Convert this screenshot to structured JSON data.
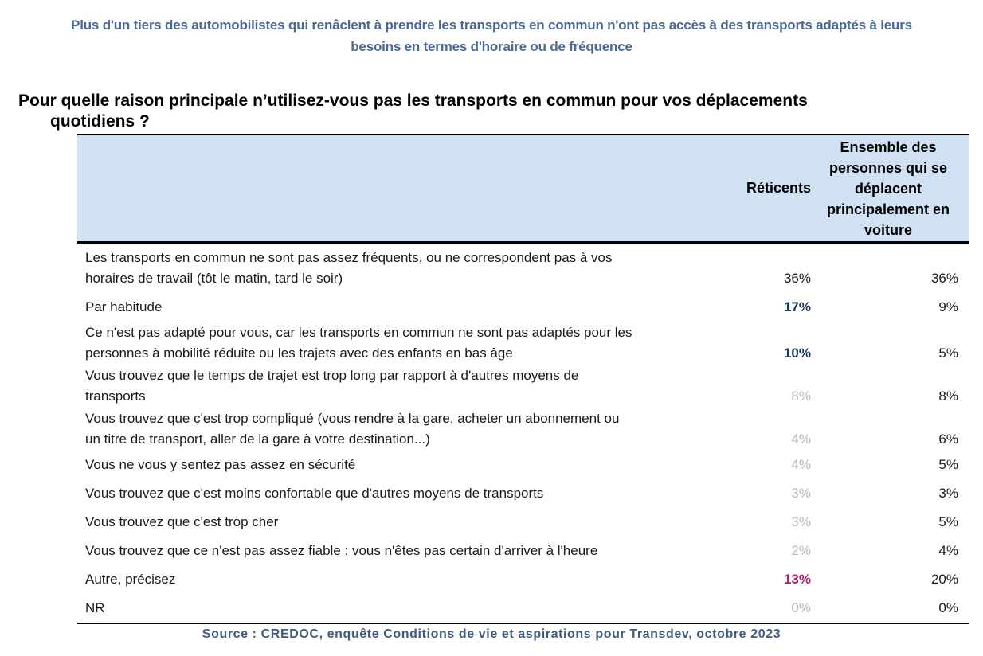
{
  "title": {
    "line1": "Plus d'un tiers des automobilistes qui renâclent à prendre les transports en commun n'ont pas accès à des transports adaptés à leurs",
    "line2": "besoins en termes d'horaire ou de fréquence"
  },
  "question": {
    "line1": "Pour quelle raison principale n’utilisez-vous pas les transports en commun pour vos déplacements",
    "line2": "quotidiens ?"
  },
  "table": {
    "header": {
      "col_label": "",
      "col_reticents": "Réticents",
      "col_ensemble": "Ensemble des personnes qui se déplacent principalement en voiture"
    },
    "rows": [
      {
        "label_lines": [
          "Les transports en commun ne sont pas assez fréquents, ou ne correspondent pas à vos",
          "horaires de travail (tôt le matin, tard le soir)"
        ],
        "reticents": "36%",
        "reticents_color": "black",
        "reticents_bold": false,
        "ensemble": "36%",
        "tight": false
      },
      {
        "label_lines": [
          "Par habitude"
        ],
        "reticents": "17%",
        "reticents_color": "navy",
        "reticents_bold": true,
        "ensemble": "9%",
        "tight": false
      },
      {
        "label_lines": [
          "Ce n'est pas adapté pour vous, car les transports en commun ne sont pas adaptés pour les",
          "personnes à mobilité réduite ou les trajets avec des enfants en bas âge"
        ],
        "reticents": "10%",
        "reticents_color": "navy",
        "reticents_bold": true,
        "ensemble": "5%",
        "tight": true
      },
      {
        "label_lines": [
          "Vous trouvez que le temps de trajet est trop long par rapport à d'autres moyens de",
          "transports"
        ],
        "reticents": "8%",
        "reticents_color": "gray",
        "reticents_bold": false,
        "ensemble": "8%",
        "tight": true
      },
      {
        "label_lines": [
          "Vous trouvez que c'est trop compliqué (vous rendre à la gare, acheter un abonnement ou",
          "un titre de transport, aller de la gare à votre destination...)"
        ],
        "reticents": "4%",
        "reticents_color": "gray",
        "reticents_bold": false,
        "ensemble": "6%",
        "tight": true
      },
      {
        "label_lines": [
          "Vous ne vous y sentez pas assez en sécurité"
        ],
        "reticents": "4%",
        "reticents_color": "gray",
        "reticents_bold": false,
        "ensemble": "5%",
        "tight": false
      },
      {
        "label_lines": [
          "Vous trouvez que c'est moins confortable que d'autres moyens de transports"
        ],
        "reticents": "3%",
        "reticents_color": "gray",
        "reticents_bold": false,
        "ensemble": "3%",
        "tight": false
      },
      {
        "label_lines": [
          "Vous trouvez que c'est trop cher"
        ],
        "reticents": "3%",
        "reticents_color": "gray",
        "reticents_bold": false,
        "ensemble": "5%",
        "tight": false
      },
      {
        "label_lines": [
          "Vous trouvez que ce n'est pas assez fiable : vous n'êtes pas certain d'arriver à l'heure"
        ],
        "reticents": "2%",
        "reticents_color": "gray",
        "reticents_bold": false,
        "ensemble": "4%",
        "tight": false
      },
      {
        "label_lines": [
          "Autre, précisez"
        ],
        "reticents": "13%",
        "reticents_color": "magenta",
        "reticents_bold": true,
        "ensemble": "20%",
        "tight": false
      },
      {
        "label_lines": [
          "NR"
        ],
        "reticents": "0%",
        "reticents_color": "gray",
        "reticents_bold": false,
        "ensemble": "0%",
        "tight": false
      }
    ]
  },
  "source": "Source : CREDOC, enquête Conditions de vie et aspirations pour Transdev, octobre 2023",
  "colors": {
    "title_blue": "#4a6a96",
    "question_black": "#000000",
    "header_bg": "#cfe1f2",
    "navy": "#16375f",
    "magenta": "#ad1f6f",
    "gray": "#b8b8b8",
    "black": "#1a1a1a",
    "source_blue": "#3d5c80",
    "border_black": "#000000"
  }
}
